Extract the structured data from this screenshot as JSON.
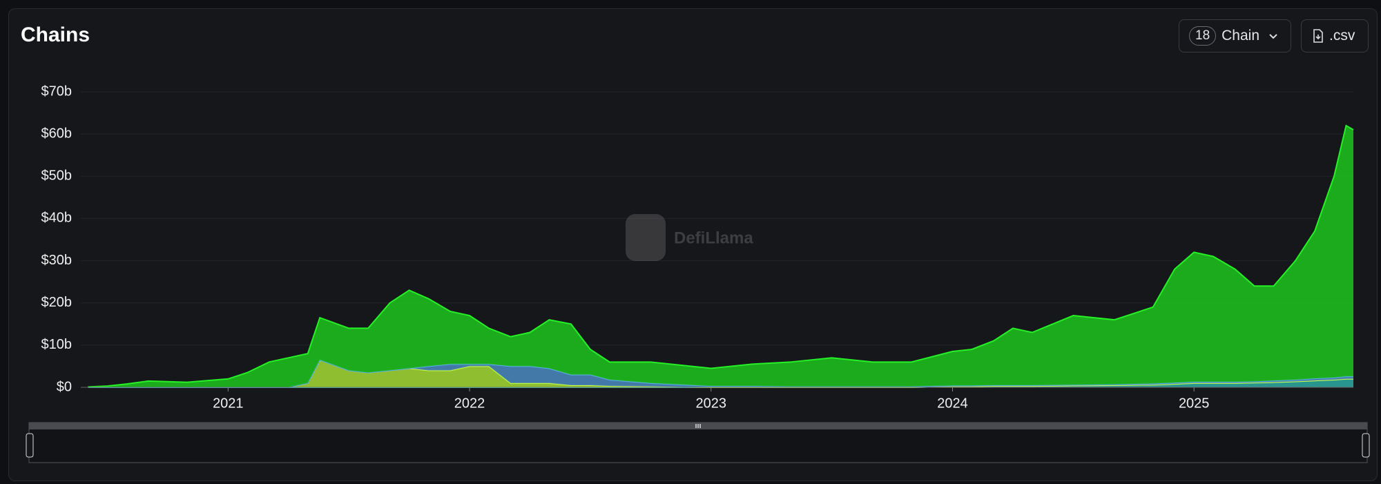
{
  "chart_data": {
    "type": "area",
    "title": "Chains",
    "stacked": true,
    "grid": true,
    "x": [
      2020.42,
      2020.5,
      2020.58,
      2020.67,
      2020.83,
      2021,
      2021.08,
      2021.17,
      2021.25,
      2021.33,
      2021.38,
      2021.5,
      2021.58,
      2021.67,
      2021.75,
      2021.83,
      2021.92,
      2022,
      2022.08,
      2022.17,
      2022.25,
      2022.33,
      2022.42,
      2022.5,
      2022.58,
      2022.75,
      2023,
      2023.17,
      2023.33,
      2023.5,
      2023.67,
      2023.83,
      2024,
      2024.08,
      2024.17,
      2024.25,
      2024.33,
      2024.5,
      2024.67,
      2024.83,
      2024.92,
      2025,
      2025.08,
      2025.17,
      2025.25,
      2025.33,
      2025.42,
      2025.5,
      2025.58,
      2025.63,
      2025.66
    ],
    "series": [
      {
        "color": "#2aa198",
        "values": [
          0,
          0,
          0,
          0,
          0,
          0,
          0,
          0,
          0,
          0,
          0,
          0,
          0,
          0,
          0,
          0,
          0,
          0,
          0,
          0,
          0,
          0,
          0,
          0,
          0,
          0,
          0,
          0,
          0,
          0,
          0,
          0,
          0.2,
          0.2,
          0.3,
          0.3,
          0.3,
          0.4,
          0.5,
          0.6,
          0.8,
          1,
          1,
          1,
          1.1,
          1.2,
          1.4,
          1.6,
          1.8,
          2,
          2
        ]
      },
      {
        "color": "#9acd32",
        "values": [
          0,
          0,
          0,
          0,
          0,
          0,
          0,
          0,
          0,
          1,
          6.5,
          4,
          3.5,
          4,
          4.5,
          4,
          4,
          5,
          5,
          1,
          1,
          1,
          0.5,
          0.5,
          0.3,
          0.2,
          0,
          0,
          0,
          0,
          0,
          0,
          0,
          0,
          0,
          0,
          0,
          0,
          0,
          0,
          0,
          0,
          0,
          0,
          0,
          0,
          0,
          0,
          0,
          0,
          0
        ]
      },
      {
        "color": "#4682b4",
        "values": [
          0,
          0,
          0,
          0,
          0,
          0,
          0,
          0,
          0,
          0,
          0,
          0,
          0,
          0,
          0,
          1,
          1.5,
          0.5,
          0.5,
          4,
          4,
          3.5,
          2.5,
          2.5,
          1.5,
          0.8,
          0.3,
          0.3,
          0.2,
          0.2,
          0.2,
          0.2,
          0.2,
          0.2,
          0.2,
          0.2,
          0.2,
          0.2,
          0.2,
          0.3,
          0.3,
          0.3,
          0.3,
          0.3,
          0.3,
          0.4,
          0.4,
          0.5,
          0.5,
          0.6,
          0.6
        ]
      },
      {
        "color": "#1db91d",
        "values": [
          0.1,
          0.3,
          0.8,
          1.5,
          1.2,
          2,
          3.5,
          6,
          7,
          7,
          10,
          10,
          10.5,
          16,
          18.5,
          16,
          12.5,
          11.5,
          8.5,
          7,
          8,
          11.5,
          12,
          6,
          4.2,
          5,
          4.2,
          5.2,
          5.8,
          6.8,
          5.8,
          5.8,
          8.1,
          8.6,
          10.5,
          13.5,
          12.5,
          16.4,
          15.3,
          18.1,
          26.9,
          30.7,
          29.7,
          26.7,
          22.6,
          22.4,
          28.2,
          34.9,
          47.7,
          59.4,
          58.4
        ]
      }
    ],
    "xlim": [
      2020.39,
      2025.66
    ],
    "xticks": [
      2021,
      2022,
      2023,
      2024,
      2025
    ],
    "ylim": [
      0,
      70
    ],
    "yticks": [
      {
        "value": 0,
        "label": "$0"
      },
      {
        "value": 10,
        "label": "$10b"
      },
      {
        "value": 20,
        "label": "$20b"
      },
      {
        "value": 30,
        "label": "$30b"
      },
      {
        "value": 40,
        "label": "$40b"
      },
      {
        "value": 50,
        "label": "$50b"
      },
      {
        "value": 60,
        "label": "$60b"
      },
      {
        "value": 70,
        "label": "$70b"
      }
    ]
  },
  "controls": {
    "chain_count": 18,
    "chain_label": "Chain",
    "csv_label": ".csv"
  },
  "watermark": "DefiLlama"
}
